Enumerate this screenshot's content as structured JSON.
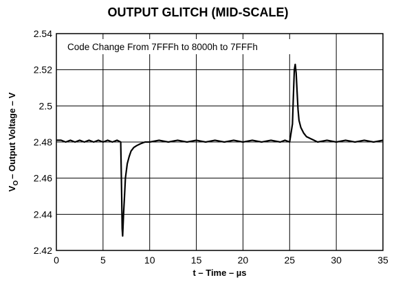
{
  "chart_data": {
    "type": "line",
    "title": "OUTPUT GLITCH (MID-SCALE)",
    "xlabel_prefix": "t – Time – ",
    "xlabel_unit": "µs",
    "ylabel_v": "V",
    "ylabel_sub": "O",
    "ylabel_rest": "– Output Voltage – V",
    "annotation": "Code Change From 7FFFh to 8000h to 7FFFh",
    "xlim": [
      0,
      35
    ],
    "ylim": [
      2.42,
      2.54
    ],
    "xticks": [
      0,
      5,
      10,
      15,
      20,
      25,
      30,
      35
    ],
    "yticks": [
      2.42,
      2.44,
      2.46,
      2.48,
      2.5,
      2.52,
      2.54
    ],
    "ytick_labels": [
      "2.42",
      "2.44",
      "2.46",
      "2.48",
      "2.5",
      "2.52",
      "2.54"
    ],
    "grid": true,
    "series": [
      {
        "color": "#000000",
        "x": [
          0.0,
          0.5,
          1.0,
          1.5,
          2.0,
          2.5,
          3.0,
          3.5,
          4.0,
          4.5,
          5.0,
          5.5,
          6.0,
          6.5,
          6.9,
          7.0,
          7.05,
          7.1,
          7.2,
          7.3,
          7.4,
          7.6,
          7.8,
          8.0,
          8.3,
          8.6,
          9.0,
          9.5,
          10.0,
          11.0,
          12.0,
          13.0,
          14.0,
          15.0,
          16.0,
          17.0,
          18.0,
          19.0,
          20.0,
          21.0,
          22.0,
          23.0,
          24.0,
          24.5,
          25.0,
          25.3,
          25.4,
          25.5,
          25.6,
          25.7,
          25.8,
          25.9,
          26.0,
          26.2,
          26.5,
          26.8,
          27.2,
          27.6,
          28.0,
          29.0,
          30.0,
          31.0,
          32.0,
          33.0,
          34.0,
          35.0
        ],
        "y": [
          2.481,
          2.481,
          2.48,
          2.481,
          2.48,
          2.481,
          2.48,
          2.481,
          2.48,
          2.481,
          2.48,
          2.481,
          2.48,
          2.481,
          2.48,
          2.45,
          2.432,
          2.428,
          2.44,
          2.45,
          2.46,
          2.468,
          2.472,
          2.475,
          2.477,
          2.478,
          2.479,
          2.48,
          2.48,
          2.481,
          2.48,
          2.481,
          2.48,
          2.481,
          2.48,
          2.481,
          2.48,
          2.481,
          2.48,
          2.481,
          2.48,
          2.481,
          2.48,
          2.481,
          2.48,
          2.49,
          2.505,
          2.52,
          2.523,
          2.518,
          2.508,
          2.498,
          2.492,
          2.488,
          2.485,
          2.483,
          2.482,
          2.481,
          2.48,
          2.481,
          2.48,
          2.481,
          2.48,
          2.481,
          2.48,
          2.481
        ]
      }
    ]
  }
}
